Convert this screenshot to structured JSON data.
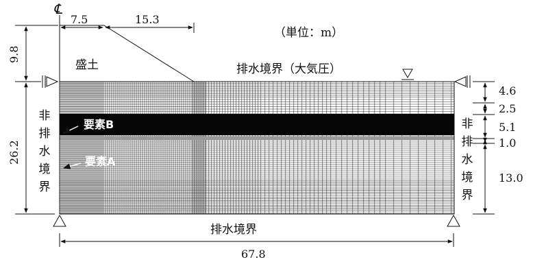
{
  "figure": {
    "centerline_symbol": "℄",
    "unit_label": "（単位：m）",
    "labels": {
      "embankment": "盛土",
      "top_boundary": "排水境界（大気圧）",
      "bottom_boundary": "排水境界",
      "left_boundary": "非排水境界",
      "right_boundary": "非排水境界",
      "element_a": "要素A",
      "element_b": "要素B"
    },
    "dimensions": {
      "embank_crest_half": "7.5",
      "embank_slope": "15.3",
      "embank_height": "9.8",
      "ground_depth": "26.2",
      "total_width": "67.8",
      "layers": [
        "4.6",
        "2.5",
        "5.1",
        "1.0",
        "13.0"
      ]
    },
    "colors": {
      "mesh": "#2a2a2a",
      "dense_band": "#060606",
      "background": "#ffffff"
    }
  }
}
